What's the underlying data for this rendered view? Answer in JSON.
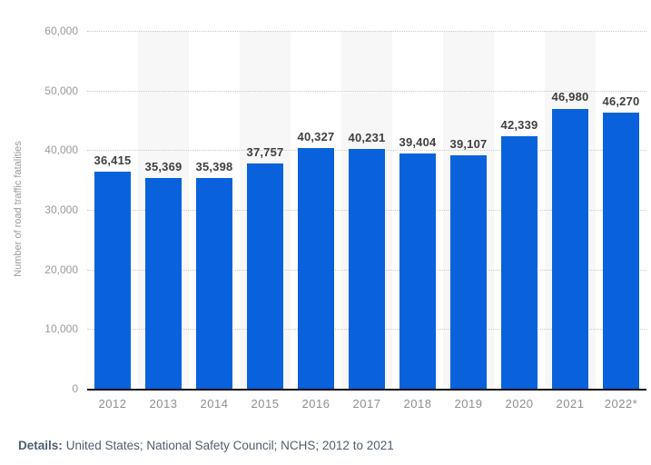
{
  "details": {
    "label": "Details:",
    "text": "United States; National Safety Council; NCHS; 2012 to 2021"
  },
  "chart_data": {
    "type": "bar",
    "title": "",
    "xlabel": "",
    "ylabel": "Number of road traffic fatalities",
    "categories": [
      "2012",
      "2013",
      "2014",
      "2015",
      "2016",
      "2017",
      "2018",
      "2019",
      "2020",
      "2021",
      "2022*"
    ],
    "values": [
      36415,
      35369,
      35398,
      37757,
      40327,
      40231,
      39404,
      39107,
      42339,
      46980,
      46270
    ],
    "value_labels": [
      "36,415",
      "35,369",
      "35,398",
      "37,757",
      "40,327",
      "40,231",
      "39,404",
      "39,107",
      "42,339",
      "46,980",
      "46,270"
    ],
    "ylim": [
      0,
      60000
    ],
    "yticks": [
      {
        "value": 0,
        "label": "0"
      },
      {
        "value": 10000,
        "label": "10,000"
      },
      {
        "value": 20000,
        "label": "20,000"
      },
      {
        "value": 30000,
        "label": "30,000"
      },
      {
        "value": 40000,
        "label": "40,000"
      },
      {
        "value": 50000,
        "label": "50,000"
      },
      {
        "value": 60000,
        "label": "60,000"
      }
    ],
    "grid": "horizontal-dotted",
    "legend": "none",
    "banded_columns": "alternating, starting with second column",
    "colors": {
      "bar": "#0962dc",
      "column_band": "#f7f7f7",
      "gridline": "#c8c8c8",
      "axis_line": "#0a0a0a",
      "tick_label": "#9a9a9a",
      "category_label": "#8f8f8f",
      "value_label": "#3f3f3f",
      "details_text": "#4e5d6e"
    }
  }
}
